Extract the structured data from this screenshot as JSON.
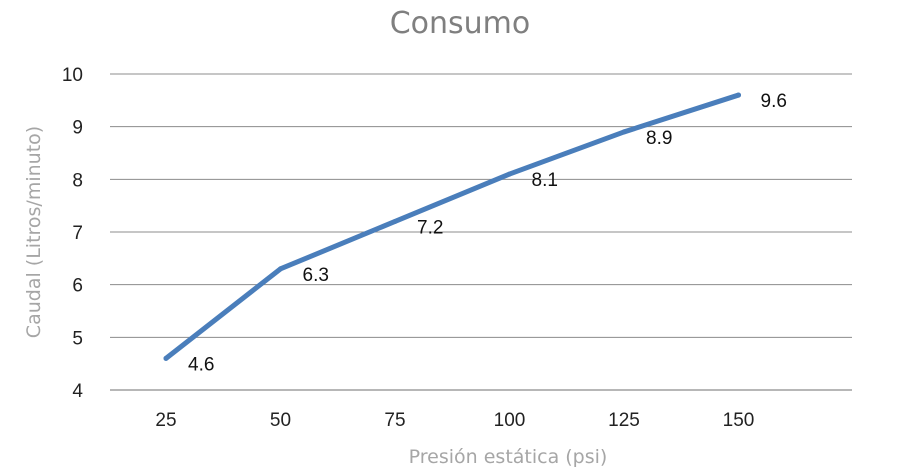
{
  "chart_data": {
    "type": "line",
    "title": "Consumo",
    "xlabel": "Presión estática (psi)",
    "ylabel": "Caudal (Litros/minuto)",
    "categories": [
      "25",
      "50",
      "75",
      "100",
      "125",
      "150"
    ],
    "series": [
      {
        "values": [
          4.6,
          6.3,
          7.2,
          8.1,
          8.9,
          9.6
        ]
      }
    ],
    "y_ticks": [
      "4",
      "5",
      "6",
      "7",
      "8",
      "9",
      "10"
    ],
    "ylim": [
      4,
      10
    ],
    "grid": true,
    "legend": "none",
    "colors": {
      "line": "#4a7ebb"
    }
  }
}
